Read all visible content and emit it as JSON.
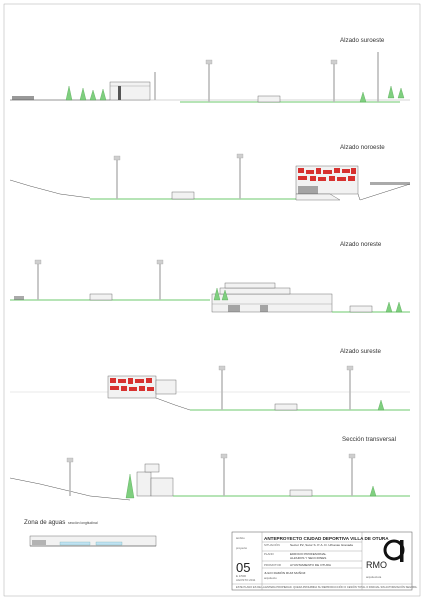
{
  "views": [
    {
      "id": "suroeste",
      "title": "Alzado suroeste"
    },
    {
      "id": "noroeste",
      "title": "Alzado noroeste"
    },
    {
      "id": "noreste",
      "title": "Alzado noreste"
    },
    {
      "id": "sureste",
      "title": "Alzado sureste"
    },
    {
      "id": "transversal",
      "title": "Sección transversal"
    }
  ],
  "water_zone": {
    "title": "Zona de aguas",
    "subtitle": "sección longitudinal"
  },
  "title_block": {
    "project_label": "ámbito",
    "project_label2": "proyecto",
    "project_title": "ANTEPROYECTO CIUDAD DEPORTIVA VILLA DE OTURA",
    "situacion_label": "SITUACIÓN",
    "situacion_value": "Sector P2, Sutor S. P. A. D. Urbanas Granada",
    "plano_label": "PLANO",
    "plano_value1": "EDIFICIO PROFESIONAL",
    "plano_value2": "ALZADOS Y SECCIONES",
    "promotor_label": "PROMOTOR",
    "promotor_value": "AYUNTAMIENTO DE OTURA",
    "sheet_number": "05",
    "scale": "E 1/500",
    "date": "AGOSTO 2011",
    "author": "JULIO RAMÓN RUIZ MUÑOZ",
    "author_detail": "arquitecto",
    "logo_letters": "RMO",
    "logo_sub": "arquitectura",
    "footer": "ESTE PLANO ES DE LA ENTERA PROPIEDAD. QUEDA PROHIBIDA SU REPRODUCCIÓN O CESIÓN TOTAL O PARCIAL SIN AUTORIZACIÓN SEGURA."
  },
  "colors": {
    "ground": "#6cc86c",
    "tree": "#7fcf7f",
    "facade_red": "#d7312f",
    "line": "#555555"
  }
}
